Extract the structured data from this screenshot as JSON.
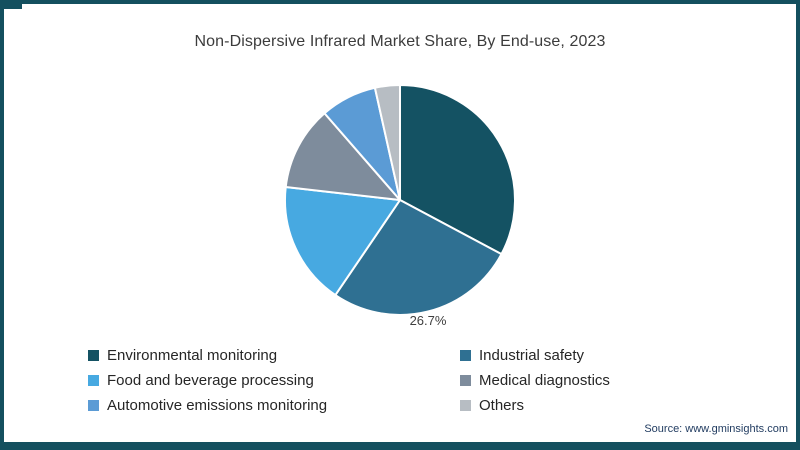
{
  "frame": {
    "border_color": "#14505f",
    "background": "#ffffff"
  },
  "chart_data": {
    "type": "pie",
    "title": "Non-Dispersive Infrared Market Share, By End-use, 2023",
    "start_angle_deg": 0,
    "direction": "clockwise",
    "donut": false,
    "slice_divider_color": "#ffffff",
    "legend_position": "bottom",
    "slices": [
      {
        "label": "Environmental monitoring",
        "value": 32.8,
        "color": "#145263",
        "data_label": ""
      },
      {
        "label": "Industrial safety",
        "value": 26.7,
        "color": "#2f7092",
        "data_label": "26.7%"
      },
      {
        "label": "Food and beverage processing",
        "value": 17.3,
        "color": "#47a9e1",
        "data_label": ""
      },
      {
        "label": "Medical diagnostics",
        "value": 11.8,
        "color": "#7e8c9c",
        "data_label": ""
      },
      {
        "label": "Automotive emissions monitoring",
        "value": 7.9,
        "color": "#5b9bd5",
        "data_label": ""
      },
      {
        "label": "Others",
        "value": 3.5,
        "color": "#b7bdc3",
        "data_label": ""
      }
    ]
  },
  "legend": {
    "col1": [
      0,
      2,
      4
    ],
    "col2": [
      1,
      3,
      5
    ]
  },
  "source": {
    "text": "Source: www.gminsights.com"
  }
}
